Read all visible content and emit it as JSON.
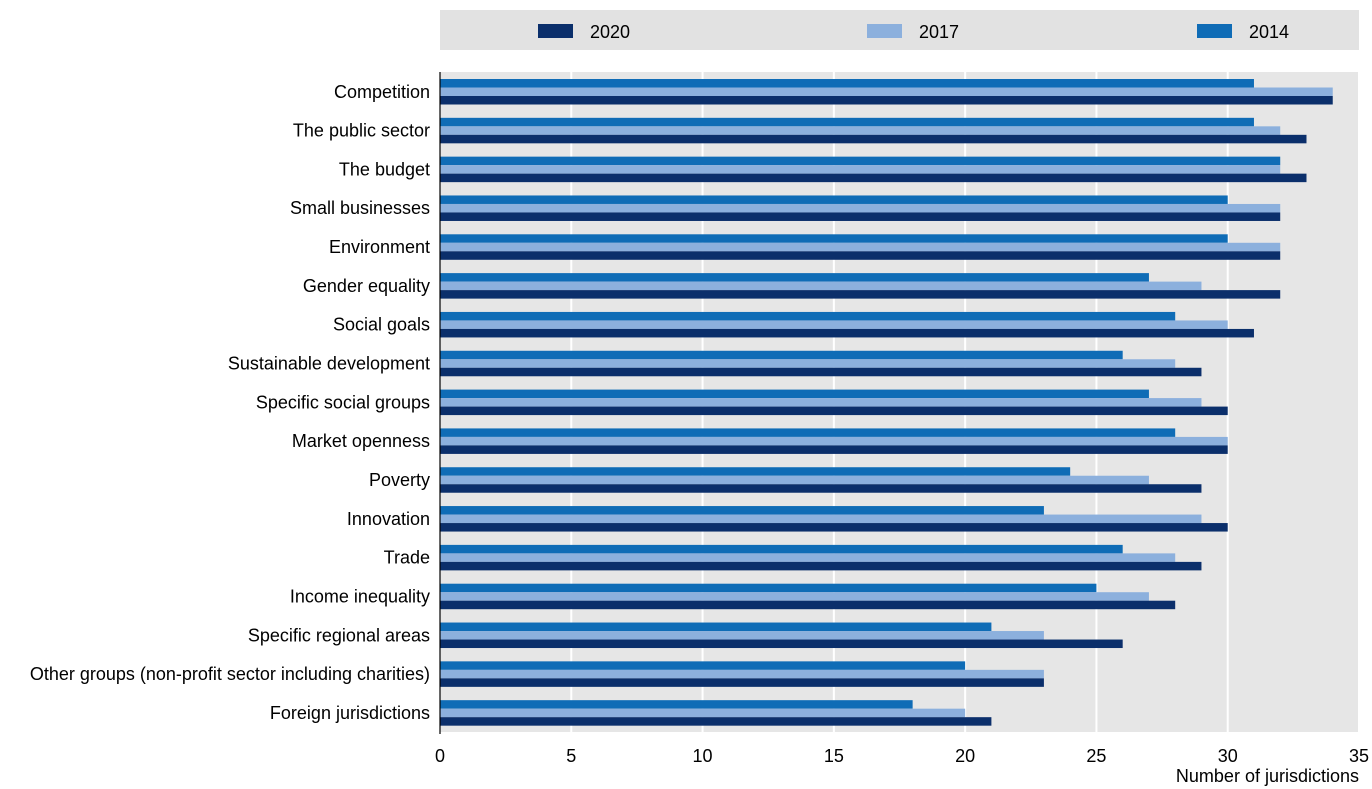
{
  "chart_data": {
    "type": "bar",
    "orientation": "horizontal",
    "title": "",
    "xlabel": "Number of jurisdictions",
    "ylabel": "",
    "xlim": [
      0,
      35
    ],
    "xticks": [
      0,
      5,
      10,
      15,
      20,
      25,
      30,
      35
    ],
    "grid": true,
    "legend_position": "top",
    "categories": [
      "Competition",
      "The public sector",
      "The budget",
      "Small businesses",
      "Environment",
      "Gender equality",
      "Social goals",
      "Sustainable development",
      "Specific social groups",
      "Market openness",
      "Poverty",
      "Innovation",
      "Trade",
      "Income inequality",
      "Specific regional areas",
      "Other groups (non-profit sector including charities)",
      "Foreign jurisdictions"
    ],
    "series": [
      {
        "name": "2020",
        "color": "#0b2f6b",
        "values": [
          34,
          33,
          33,
          32,
          32,
          32,
          31,
          29,
          30,
          30,
          29,
          30,
          29,
          28,
          26,
          23,
          21
        ]
      },
      {
        "name": "2017",
        "color": "#8cb0dd",
        "values": [
          34,
          32,
          32,
          32,
          32,
          29,
          30,
          28,
          29,
          30,
          27,
          29,
          28,
          27,
          23,
          23,
          20
        ]
      },
      {
        "name": "2014",
        "color": "#0f6cb6",
        "values": [
          31,
          31,
          32,
          30,
          30,
          27,
          28,
          26,
          27,
          28,
          24,
          23,
          26,
          25,
          21,
          20,
          18
        ]
      }
    ]
  }
}
